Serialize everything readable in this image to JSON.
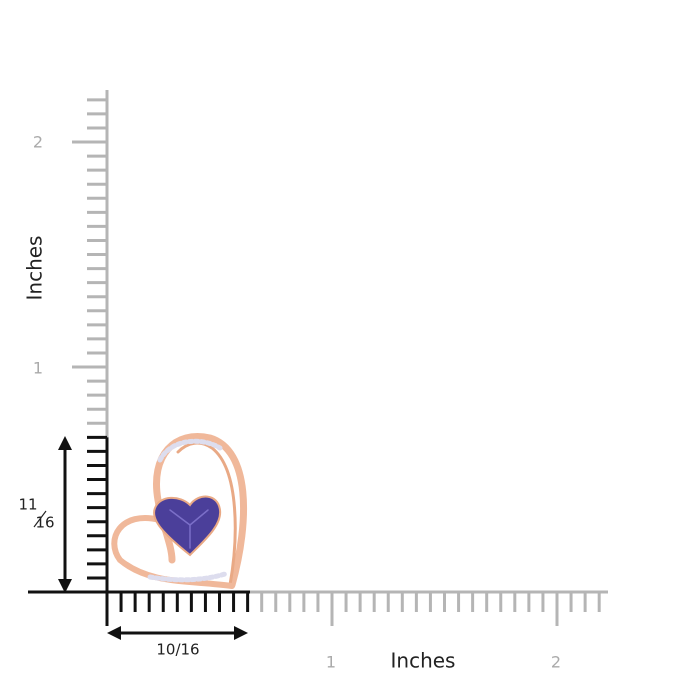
{
  "y_axis": {
    "label": "Inches",
    "ticks": [
      "2",
      "1"
    ]
  },
  "x_axis": {
    "label": "Inches",
    "ticks": [
      "1",
      "2"
    ]
  },
  "height_dimension": {
    "numerator": "11",
    "denominator": "16"
  },
  "width_dimension": {
    "label": "10/16"
  }
}
